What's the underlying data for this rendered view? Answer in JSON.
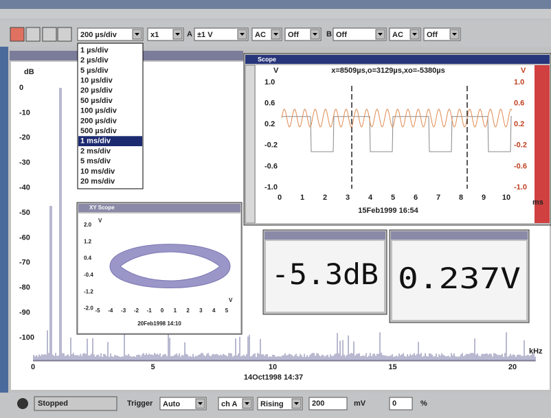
{
  "toolbar": {
    "timebase": "200 µs/div",
    "multiplier": "x1",
    "channel_a_label": "A",
    "channel_a_range": "±1 V",
    "channel_a_coupling": "AC",
    "channel_a_option": "Off",
    "channel_b_label": "B",
    "channel_b_range": "Off",
    "channel_b_coupling": "AC",
    "channel_b_option": "Off"
  },
  "timebase_menu": {
    "items": [
      "1 µs/div",
      "2 µs/div",
      "5 µs/div",
      "10 µs/div",
      "20 µs/div",
      "50 µs/div",
      "100 µs/div",
      "200 µs/div",
      "500 µs/div",
      "1 ms/div",
      "2 ms/div",
      "5 ms/div",
      "10 ms/div",
      "20 ms/div"
    ]
  },
  "spectrum": {
    "y_unit": "dB",
    "yticks": [
      "0",
      "-10",
      "-20",
      "-30",
      "-40",
      "-50",
      "-60",
      "-70",
      "-80",
      "-90",
      "-100"
    ],
    "xticks": [
      "0",
      "5",
      "10",
      "15",
      "20"
    ],
    "x_unit": "kHz",
    "timestamp": "14Oct1998 14:37"
  },
  "scope": {
    "title": "Scope",
    "cursor_readout": "x=8509µs,o=3129µs,xo=-5380µs",
    "left_unit": "V",
    "right_unit": "V",
    "left_ticks": [
      "1.0",
      "0.6",
      "0.2",
      "-0.2",
      "-0.6",
      "-1.0"
    ],
    "right_ticks": [
      "1.0",
      "0.6",
      "0.2",
      "-0.2",
      "-0.6",
      "-1.0"
    ],
    "xticks": [
      "0",
      "1",
      "2",
      "3",
      "4",
      "5",
      "6",
      "7",
      "8",
      "9",
      "10"
    ],
    "x_unit": "ms",
    "timestamp": "15Feb1999 16:54"
  },
  "xy_scope": {
    "title": "XY Scope",
    "y_unit": "V",
    "yticks": [
      "2.0",
      "1.2",
      "0.4",
      "-0.4",
      "-1.2",
      "-2.0"
    ],
    "x_unit": "V",
    "xticks": [
      "-5",
      "-4",
      "-3",
      "-2",
      "-1",
      "0",
      "1",
      "2",
      "3",
      "4",
      "5"
    ],
    "timestamp": "20Feb1998 14:10"
  },
  "meters": [
    {
      "reading": "-5.3dB"
    },
    {
      "reading": "0.237V"
    }
  ],
  "status": {
    "state": "Stopped",
    "trigger_label": "Trigger",
    "trigger_mode": "Auto",
    "trigger_channel": "ch A",
    "trigger_edge": "Rising",
    "trigger_level": "200",
    "trigger_unit": "mV",
    "pretrigger": "0",
    "pretrigger_unit": "%"
  }
}
